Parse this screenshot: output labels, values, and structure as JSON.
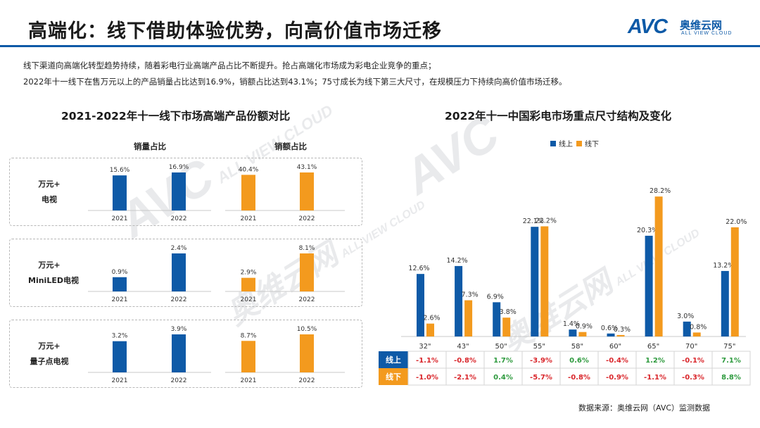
{
  "page": {
    "title": "高端化：线下借助体验优势，向高价值市场迁移",
    "desc1": "线下渠道向高端化转型趋势持续，随着彩电行业高端产品占比不断提升。抢占高端化市场成为彩电企业竞争的重点；",
    "desc2": "2022年十一线下在售万元以上的产品销量占比达到16.9%，销额占比达到43.1%；75寸成长为线下第三大尺寸，在规模压力下持续向高价值市场迁移。",
    "source": "数据来源：奥维云网（AVC）监测数据",
    "logo": {
      "mark": "AVC",
      "name_cn": "奥维云网",
      "name_en": "ALL VIEW CLOUD"
    },
    "watermark": {
      "mark": "AVC",
      "name_cn": "奥维云网",
      "name_en": "ALL VIEW CLOUD"
    }
  },
  "colors": {
    "blue": "#0e5aa7",
    "orange": "#f39a1e",
    "red": "#d9262b",
    "green": "#2e9a3e",
    "rule": "#0e5aa7"
  },
  "chart_data": [
    {
      "type": "bar",
      "title": "2021-2022年十一线下市场高端产品份额对比",
      "column_headers": [
        "销量占比",
        "销额占比"
      ],
      "categories": [
        "2021",
        "2022"
      ],
      "rows": [
        {
          "label_line1": "万元+",
          "label_line2": "电视",
          "volume": [
            15.6,
            16.9
          ],
          "value": [
            40.4,
            43.1
          ]
        },
        {
          "label_line1": "万元+",
          "label_line2": "MiniLED电视",
          "volume": [
            0.9,
            2.4
          ],
          "value": [
            2.9,
            8.1
          ]
        },
        {
          "label_line1": "万元+",
          "label_line2": "量子点电视",
          "volume": [
            3.2,
            3.9
          ],
          "value": [
            8.7,
            10.5
          ]
        }
      ],
      "value_suffix": "%"
    },
    {
      "type": "bar",
      "title": "2022年十一中国彩电市场重点尺寸结构及变化",
      "categories": [
        "32\"",
        "43\"",
        "50\"",
        "55\"",
        "58\"",
        "60\"",
        "65\"",
        "70\"",
        "75\""
      ],
      "series": [
        {
          "name": "线上",
          "color": "#0e5aa7",
          "values": [
            12.6,
            14.2,
            6.9,
            22.1,
            1.4,
            0.6,
            20.3,
            3.0,
            13.2
          ],
          "change": [
            "-1.1%",
            "-0.8%",
            "1.7%",
            "-3.9%",
            "0.6%",
            "-0.4%",
            "1.2%",
            "-0.1%",
            "7.1%"
          ]
        },
        {
          "name": "线下",
          "color": "#f39a1e",
          "values": [
            2.6,
            7.3,
            3.8,
            22.2,
            0.9,
            0.3,
            28.2,
            0.8,
            22.0
          ],
          "change": [
            "-1.0%",
            "-2.1%",
            "0.4%",
            "-5.7%",
            "-0.8%",
            "-0.9%",
            "-1.1%",
            "-0.3%",
            "8.8%"
          ]
        }
      ],
      "legend_position": "top",
      "value_suffix": "%"
    }
  ]
}
